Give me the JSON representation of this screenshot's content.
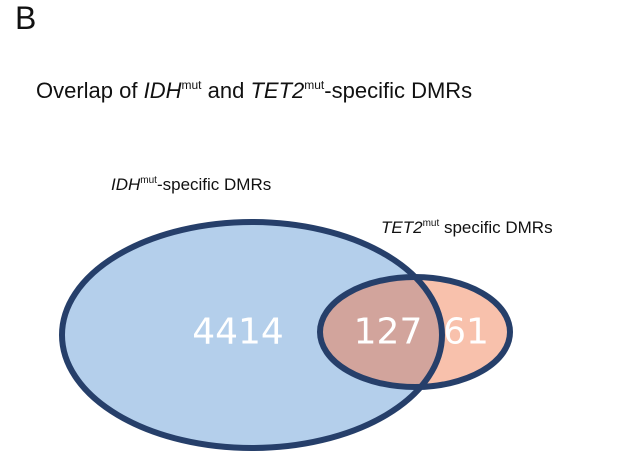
{
  "panel_letter": "B",
  "title": {
    "prefix": "Overlap of ",
    "gene1": "IDH",
    "sup1": "mut",
    "mid": " and ",
    "gene2": "TET2",
    "sup2": "mut",
    "suffix": "-specific DMRs"
  },
  "sets": [
    {
      "gene": "IDH",
      "sup": "mut",
      "rest": "-specific DMRs",
      "fill": "#b4cfeb",
      "stroke": "#263f6a"
    },
    {
      "gene": "TET2",
      "sup": "mut",
      "rest": " specific DMRs",
      "fill": "#f8c1ac",
      "stroke": "#263f6a"
    }
  ],
  "counts": {
    "only_a": "4414",
    "overlap": "127",
    "only_b": "61"
  },
  "overlap_fill": "#d2a49c"
}
